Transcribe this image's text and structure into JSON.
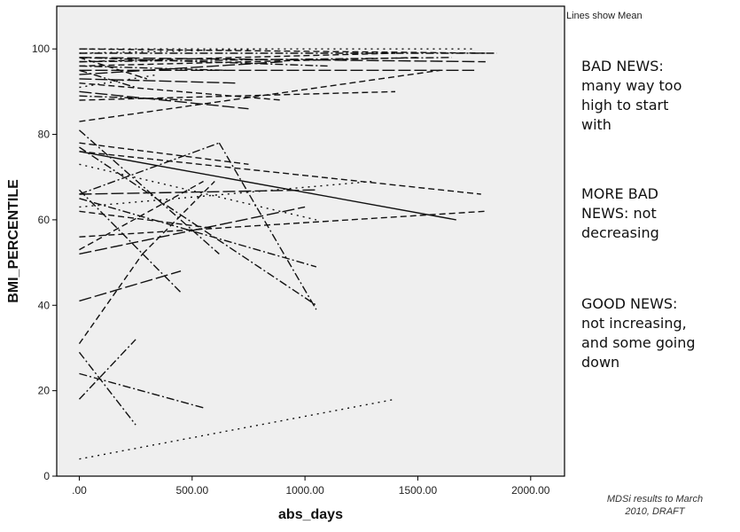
{
  "chart_data": {
    "type": "line",
    "xlabel": "abs_days",
    "ylabel": "BMI_PERCENTILE",
    "xlim": [
      -100,
      2150
    ],
    "ylim": [
      0,
      110
    ],
    "x_ticks": [
      0,
      500,
      1000,
      1500,
      2000
    ],
    "x_tick_labels": [
      ".00",
      "500.00",
      "1000.00",
      "1500.00",
      "2000.00"
    ],
    "y_ticks": [
      0,
      20,
      40,
      60,
      80,
      100
    ],
    "y_tick_labels": [
      "0",
      "20",
      "40",
      "60",
      "80",
      "100"
    ],
    "legend_note": "Lines show Mean",
    "grid": false,
    "plot_background": "#efefef",
    "series": [
      {
        "style": "dash",
        "x": [
          0,
          1800
        ],
        "y": [
          100,
          99
        ]
      },
      {
        "style": "dot",
        "x": [
          0,
          1750
        ],
        "y": [
          100,
          100
        ]
      },
      {
        "style": "dashdot",
        "x": [
          0,
          1850
        ],
        "y": [
          99,
          99
        ]
      },
      {
        "style": "longdash",
        "x": [
          0,
          1800
        ],
        "y": [
          98,
          97
        ]
      },
      {
        "style": "dashdot",
        "x": [
          0,
          1650
        ],
        "y": [
          97,
          98
        ]
      },
      {
        "style": "dash",
        "x": [
          0,
          1500
        ],
        "y": [
          96,
          98
        ]
      },
      {
        "style": "longdash",
        "x": [
          0,
          1750
        ],
        "y": [
          95,
          95
        ]
      },
      {
        "style": "dashdot",
        "x": [
          0,
          1100
        ],
        "y": [
          98,
          96
        ]
      },
      {
        "style": "dot",
        "x": [
          0,
          850
        ],
        "y": [
          99,
          100
        ]
      },
      {
        "style": "dash",
        "x": [
          0,
          1400
        ],
        "y": [
          97,
          99
        ]
      },
      {
        "style": "longdash",
        "x": [
          0,
          900
        ],
        "y": [
          94,
          97
        ]
      },
      {
        "style": "dashdot",
        "x": [
          0,
          650
        ],
        "y": [
          96,
          95
        ]
      },
      {
        "style": "dash",
        "x": [
          0,
          300
        ],
        "y": [
          98,
          93
        ]
      },
      {
        "style": "longdash",
        "x": [
          0,
          700
        ],
        "y": [
          93,
          92
        ]
      },
      {
        "style": "dashdot",
        "x": [
          0,
          250
        ],
        "y": [
          95,
          91
        ]
      },
      {
        "style": "dash",
        "x": [
          0,
          1400
        ],
        "y": [
          88,
          90
        ]
      },
      {
        "style": "longdash",
        "x": [
          0,
          750
        ],
        "y": [
          90,
          86
        ]
      },
      {
        "style": "dash",
        "x": [
          0,
          900
        ],
        "y": [
          92,
          88
        ]
      },
      {
        "style": "dashdot",
        "x": [
          0,
          500
        ],
        "y": [
          89,
          88
        ]
      },
      {
        "style": "dot",
        "x": [
          0,
          350
        ],
        "y": [
          91,
          94
        ]
      },
      {
        "style": "dash",
        "x": [
          0,
          1600
        ],
        "y": [
          83,
          95
        ]
      },
      {
        "style": "solid",
        "x": [
          0,
          1670
        ],
        "y": [
          76,
          60
        ]
      },
      {
        "style": "dash",
        "x": [
          0,
          1780
        ],
        "y": [
          76,
          66
        ]
      },
      {
        "style": "dash",
        "x": [
          0,
          750
        ],
        "y": [
          78,
          73
        ]
      },
      {
        "style": "dot",
        "x": [
          0,
          1050
        ],
        "y": [
          73,
          60
        ]
      },
      {
        "style": "dashdot",
        "x": [
          0,
          1050
        ],
        "y": [
          77,
          40
        ]
      },
      {
        "style": "dashdot",
        "x": [
          0,
          620
        ],
        "y": [
          81,
          52
        ]
      },
      {
        "style": "dashdot",
        "x": [
          0,
          620
        ],
        "y": [
          66,
          78
        ]
      },
      {
        "style": "dashdot",
        "x": [
          620,
          1050
        ],
        "y": [
          78,
          39
        ]
      },
      {
        "style": "dot",
        "x": [
          0,
          1300
        ],
        "y": [
          63,
          69
        ]
      },
      {
        "style": "longdash",
        "x": [
          0,
          1050
        ],
        "y": [
          66,
          67
        ]
      },
      {
        "style": "dash",
        "x": [
          0,
          1800
        ],
        "y": [
          56,
          62
        ]
      },
      {
        "style": "longdash",
        "x": [
          0,
          1000
        ],
        "y": [
          52,
          63
        ]
      },
      {
        "style": "dashdot",
        "x": [
          0,
          1050
        ],
        "y": [
          65,
          49
        ]
      },
      {
        "style": "dash",
        "x": [
          0,
          600
        ],
        "y": [
          62,
          58
        ]
      },
      {
        "style": "dash",
        "x": [
          0,
          550
        ],
        "y": [
          53,
          69
        ]
      },
      {
        "style": "dashdot",
        "x": [
          0,
          450
        ],
        "y": [
          67,
          43
        ]
      },
      {
        "style": "longdash",
        "x": [
          0,
          450
        ],
        "y": [
          41,
          48
        ]
      },
      {
        "style": "dash",
        "x": [
          0,
          280
        ],
        "y": [
          31,
          52
        ]
      },
      {
        "style": "dash",
        "x": [
          280,
          600
        ],
        "y": [
          52,
          69
        ]
      },
      {
        "style": "dashdot",
        "x": [
          0,
          250
        ],
        "y": [
          18,
          32
        ]
      },
      {
        "style": "dashdot",
        "x": [
          0,
          250
        ],
        "y": [
          29,
          12
        ]
      },
      {
        "style": "dashdot",
        "x": [
          0,
          550
        ],
        "y": [
          24,
          16
        ]
      },
      {
        "style": "dot",
        "x": [
          0,
          1400
        ],
        "y": [
          4,
          18
        ]
      }
    ]
  },
  "annotations": {
    "note_1_lines": [
      "BAD NEWS:",
      "many way too",
      "high to start",
      "with"
    ],
    "note_2_lines": [
      "MORE BAD",
      "NEWS: not",
      "decreasing"
    ],
    "note_3_lines": [
      "GOOD NEWS:",
      "not increasing,",
      "and some going",
      "down"
    ],
    "footer_lines": [
      "MDSi results to March",
      "2010, DRAFT"
    ]
  }
}
